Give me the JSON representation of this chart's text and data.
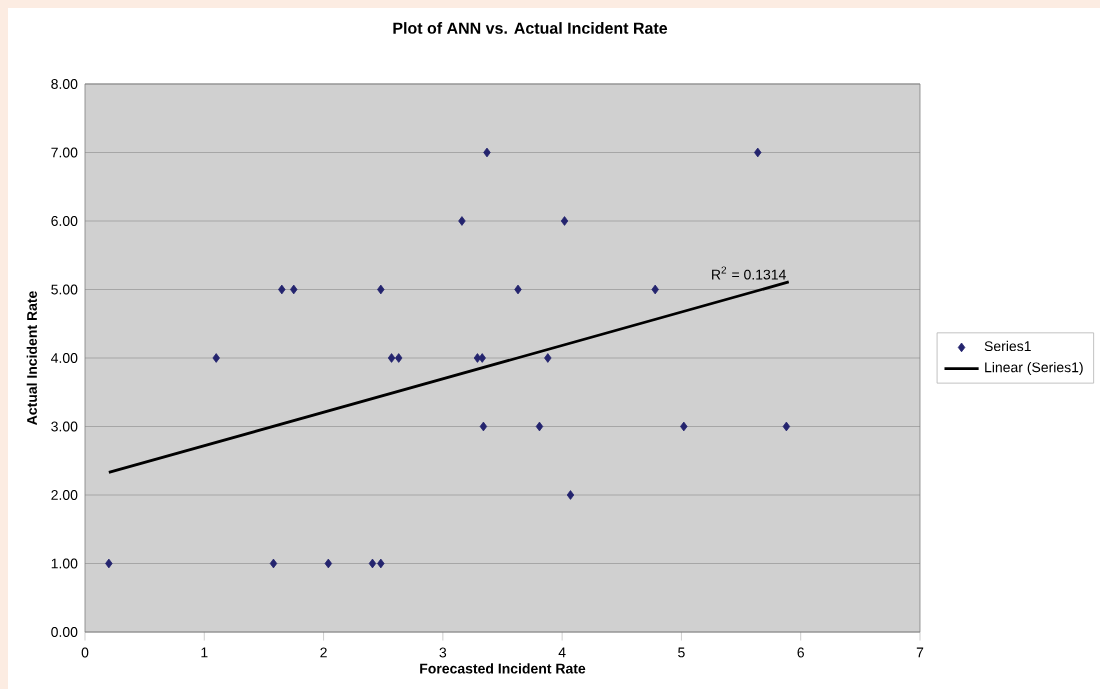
{
  "chart_data": {
    "type": "scatter",
    "title": "Plot of ANN vs. Actual Incident Rate",
    "xlabel": "Forecasted Incident Rate",
    "ylabel": "Actual Incident Rate",
    "series": [
      {
        "name": "Series1",
        "color": "#24246e",
        "marker": "diamond",
        "x": [
          0.2,
          1.1,
          1.65,
          1.75,
          1.58,
          2.04,
          2.41,
          2.48,
          2.48,
          2.57,
          2.63,
          3.16,
          3.37,
          3.29,
          3.33,
          3.34,
          3.63,
          3.81,
          3.88,
          4.02,
          4.07,
          4.78,
          5.02,
          5.64,
          5.88
        ],
        "values": [
          1,
          4,
          5,
          5,
          1,
          1,
          1,
          1,
          5,
          4,
          4,
          6,
          7,
          4,
          4,
          3,
          5,
          3,
          4,
          6,
          2,
          5,
          3,
          7,
          3
        ]
      },
      {
        "name": "Linear (Series1)",
        "type": "line",
        "color": "#000000",
        "marker": "none",
        "x": [
          0.2,
          5.9
        ],
        "values": [
          2.33,
          5.11
        ]
      }
    ],
    "annotations": [
      "R$^{2}$ = 0.1314"
    ],
    "xlim": [
      0,
      7
    ],
    "xticks": [
      0,
      1,
      2,
      3,
      4,
      5,
      6,
      7
    ],
    "ylim": [
      0,
      8
    ],
    "yticks": [
      {
        "value": 0,
        "label": "0.00"
      },
      {
        "value": 1,
        "label": "1.00"
      },
      {
        "value": 2,
        "label": "2.00"
      },
      {
        "value": 3,
        "label": "3.00"
      },
      {
        "value": 4,
        "label": "4.00"
      },
      {
        "value": 5,
        "label": "5.00"
      },
      {
        "value": 6,
        "label": "6.00"
      },
      {
        "value": 7,
        "label": "7.00"
      },
      {
        "value": 8,
        "label": "8.00"
      }
    ],
    "grid": "y",
    "legend": "right"
  }
}
